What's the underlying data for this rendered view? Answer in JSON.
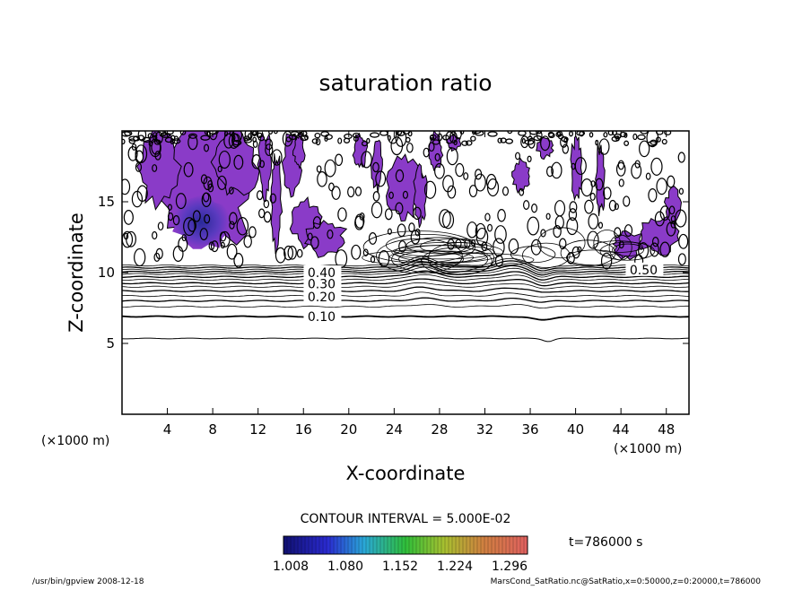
{
  "chart_data": {
    "type": "contour",
    "title": "saturation ratio",
    "xlabel": "X-coordinate",
    "ylabel": "Z-coordinate",
    "x_unit": "(×1000 m)",
    "y_unit": "(×1000 m)",
    "xlim": [
      0,
      50
    ],
    "ylim": [
      0,
      20
    ],
    "x_ticks": [
      4,
      8,
      12,
      16,
      20,
      24,
      28,
      32,
      36,
      40,
      44,
      48
    ],
    "y_ticks": [
      5,
      10,
      15
    ],
    "contour_interval": "CONTOUR INTERVAL = 5.000E-02",
    "time_label": "t=786000 s",
    "colorbar_ticks": [
      "1.008",
      "1.080",
      "1.152",
      "1.224",
      "1.296"
    ],
    "contour_labels": [
      {
        "text": "0.10",
        "x": 17.6,
        "z": 6.9
      },
      {
        "text": "0.20",
        "x": 17.6,
        "z": 8.3
      },
      {
        "text": "0.30",
        "x": 17.6,
        "z": 9.2
      },
      {
        "text": "0.40",
        "x": 17.6,
        "z": 10.0
      },
      {
        "text": "0.50",
        "x": 46.0,
        "z": 10.2
      }
    ],
    "colors": {
      "low": "#1e1e8c",
      "mid": "#8a3bc8",
      "high": "#7d2fb8"
    }
  },
  "footer": {
    "left": "/usr/bin/gpview   2008-12-18",
    "right": "MarsCond_SatRatio.nc@SatRatio,x=0:50000,z=0:20000,t=786000"
  }
}
